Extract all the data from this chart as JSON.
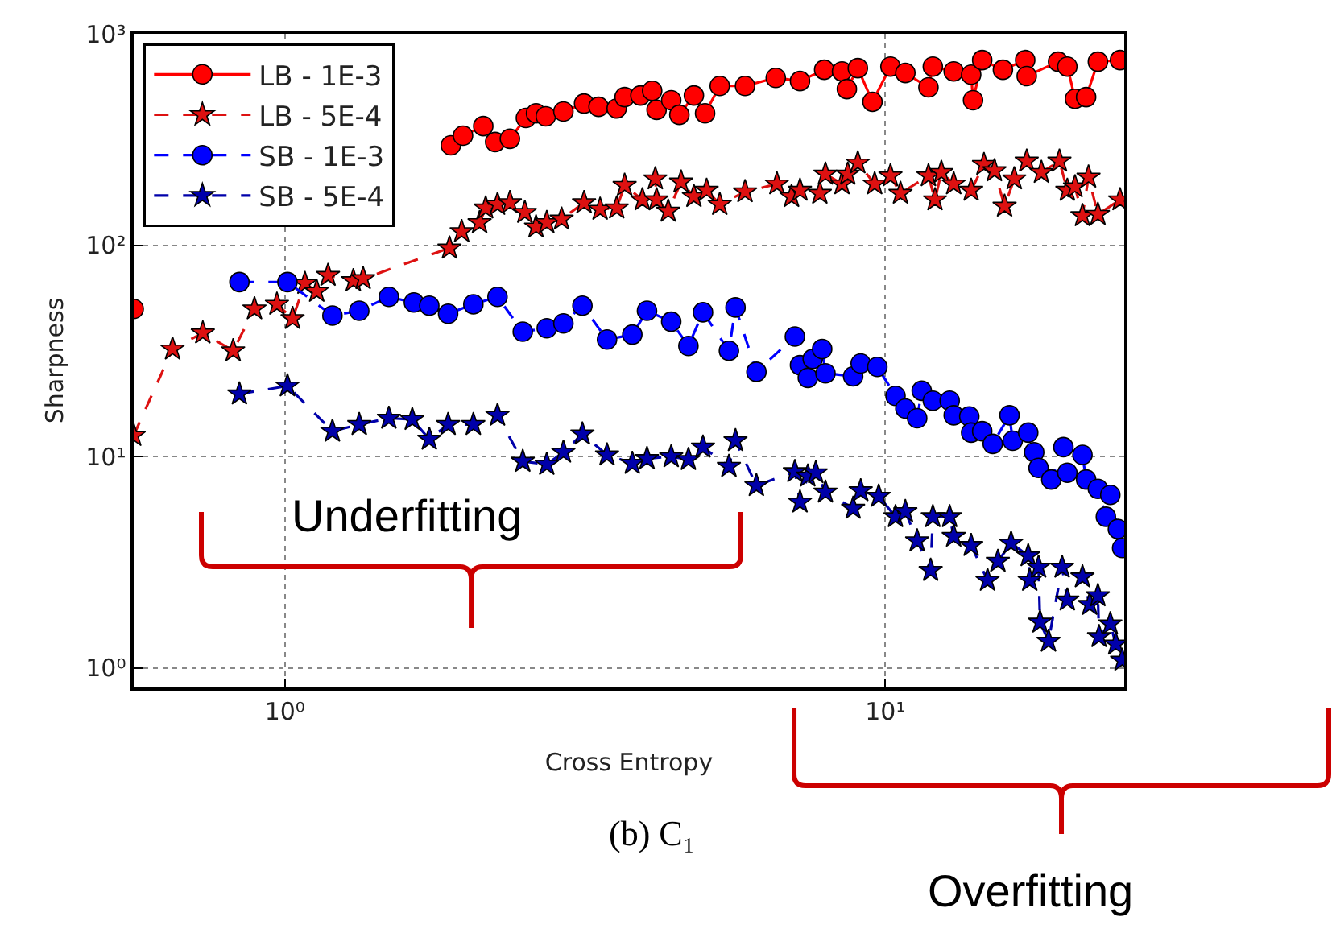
{
  "chart_data": {
    "type": "line",
    "xlabel": "Cross Entropy",
    "ylabel": "Sharpness",
    "annotations": [
      "Underfitting",
      "Overfitting",
      "(b) C₁"
    ],
    "log": "xy",
    "grid": true,
    "legend": "top left",
    "xlim": [
      0.56,
      25
    ],
    "ylim": [
      0.81,
      1000
    ],
    "xticks": [
      {
        "value": 1,
        "label": "10⁰"
      },
      {
        "value": 10,
        "label": "10¹"
      }
    ],
    "yticks": [
      {
        "value": 1,
        "label": "10⁰"
      },
      {
        "value": 10,
        "label": "10¹"
      },
      {
        "value": 100,
        "label": "10²"
      },
      {
        "value": 1000,
        "label": "10³"
      }
    ],
    "series": [
      {
        "name": "LB - 1E-3",
        "color": "#ff0000",
        "marker": "circle",
        "line_style": "solid",
        "x": [
          0.56,
          1.2,
          1.89,
          1.98,
          2.14,
          2.24,
          2.37,
          2.52,
          2.62,
          2.72,
          2.91,
          3.15,
          3.33,
          3.57,
          3.68,
          3.91,
          4.09,
          4.16,
          4.4,
          4.54,
          4.8,
          5.01,
          5.3,
          5.84,
          6.57,
          7.21,
          7.91,
          8.47,
          8.63,
          9.0,
          9.52,
          10.2,
          10.8,
          11.8,
          12.0,
          13.0,
          13.9,
          14.0,
          14.5,
          15.7,
          17.1,
          17.2,
          19.4,
          20.1,
          20.7,
          21.6,
          22.6,
          24.6
        ],
        "values": [
          50,
          null,
          297,
          330,
          366,
          308,
          319,
          400,
          421,
          407,
          429,
          468,
          452,
          444,
          502,
          511,
          538,
          437,
          485,
          414,
          511,
          421,
          567,
          567,
          619,
          598,
          676,
          664,
          548,
          688,
          477,
          700,
          653,
          558,
          700,
          664,
          641,
          485,
          751,
          676,
          751,
          631,
          738,
          700,
          493,
          502,
          738,
          751
        ]
      },
      {
        "name": "LB - 5E-4",
        "color": "#dd1111",
        "marker": "star",
        "line_style": "dashed",
        "x": [
          0.56,
          0.65,
          0.73,
          0.82,
          0.89,
          0.97,
          1.03,
          1.08,
          1.13,
          1.18,
          1.3,
          1.35,
          1.88,
          1.97,
          2.11,
          2.16,
          2.26,
          2.37,
          2.51,
          2.62,
          2.73,
          2.89,
          3.15,
          3.35,
          3.57,
          3.68,
          3.94,
          4.14,
          4.16,
          4.35,
          4.57,
          4.8,
          5.04,
          5.3,
          5.84,
          6.6,
          6.98,
          7.21,
          7.78,
          7.95,
          8.47,
          8.66,
          9.0,
          9.6,
          10.2,
          10.6,
          11.8,
          12.1,
          12.4,
          13.0,
          13.9,
          14.6,
          15.2,
          15.8,
          16.4,
          17.2,
          18.2,
          19.5,
          20.1,
          20.7,
          21.3,
          21.8,
          22.6,
          24.6
        ],
        "values": [
          12.6,
          32.3,
          38.5,
          31.7,
          50,
          52.6,
          45,
          66,
          60.5,
          72,
          68,
          69.5,
          97,
          116,
          128,
          150,
          156,
          159,
          143,
          122,
          128,
          133,
          159,
          148,
          150,
          192,
          164,
          206,
          164,
          145,
          199,
          170,
          182,
          156,
          179,
          195,
          170,
          182,
          176,
          217,
          195,
          217,
          245,
          195,
          213,
          176,
          213,
          164,
          221,
          195,
          182,
          241,
          225,
          153,
          206,
          250,
          221,
          250,
          182,
          189,
          138,
          210,
          140,
          164
        ]
      },
      {
        "name": "SB - 1E-3",
        "color": "#0000ff",
        "marker": "circle",
        "line_style": "dashed",
        "x": [
          0.84,
          1.01,
          1.2,
          1.33,
          1.49,
          1.64,
          1.74,
          1.87,
          2.06,
          2.26,
          2.49,
          2.73,
          2.91,
          3.13,
          3.44,
          3.79,
          4.01,
          4.4,
          4.7,
          4.97,
          5.49,
          5.63,
          6.1,
          7.07,
          7.21,
          7.43,
          7.57,
          7.85,
          7.95,
          8.84,
          9.1,
          9.7,
          10.4,
          10.8,
          11.3,
          11.5,
          12.0,
          12.8,
          13.0,
          13.8,
          13.9,
          14.5,
          15.1,
          16.1,
          16.3,
          17.3,
          17.7,
          18.0,
          18.9,
          19.8,
          20.1,
          21.3,
          21.6,
          22.6,
          23.3,
          23.7,
          24.4,
          24.8
        ],
        "values": [
          67,
          67,
          46.5,
          49,
          57,
          53.6,
          51.8,
          47.4,
          52.6,
          57,
          39,
          40.5,
          42.7,
          51.8,
          35.8,
          37.8,
          49,
          43.5,
          33.4,
          48.2,
          31.7,
          50.8,
          25.2,
          37,
          27.1,
          23.6,
          29,
          32.3,
          24.8,
          24,
          27.6,
          26.6,
          19.4,
          16.9,
          15.2,
          20.5,
          18.4,
          18.4,
          15.7,
          15.5,
          13,
          13.2,
          11.5,
          15.7,
          11.9,
          13,
          10.5,
          8.85,
          7.8,
          11.1,
          8.4,
          10.2,
          7.8,
          7.05,
          5.2,
          6.6,
          4.55,
          3.7
        ]
      },
      {
        "name": "SB - 5E-4",
        "color": "#0000aa",
        "marker": "star",
        "line_style": "dashed",
        "x": [
          0.84,
          1.01,
          1.2,
          1.33,
          1.49,
          1.63,
          1.74,
          1.87,
          2.06,
          2.26,
          2.49,
          2.73,
          2.91,
          3.13,
          3.44,
          3.79,
          4.01,
          4.4,
          4.7,
          4.97,
          5.49,
          5.63,
          6.1,
          7.07,
          7.21,
          7.43,
          7.66,
          7.95,
          8.84,
          9.1,
          9.75,
          10.4,
          10.8,
          11.3,
          11.9,
          12.0,
          12.8,
          13.0,
          13.9,
          14.8,
          15.4,
          16.2,
          17.3,
          17.4,
          18.0,
          18.1,
          18.7,
          19.7,
          20.1,
          21.3,
          21.9,
          22.6,
          22.7,
          23.7,
          24.2,
          24.8
        ],
        "values": [
          19.8,
          21.6,
          13.2,
          14.2,
          15.2,
          15,
          12.1,
          14.2,
          14.2,
          15.7,
          9.5,
          9.2,
          10.5,
          12.8,
          10.2,
          9.3,
          9.8,
          10,
          9.7,
          11.1,
          9.0,
          11.9,
          7.3,
          8.5,
          6.1,
          8.1,
          8.4,
          6.8,
          5.7,
          6.9,
          6.5,
          5.2,
          5.5,
          4.0,
          2.9,
          5.2,
          5.2,
          4.2,
          3.8,
          2.6,
          3.2,
          3.9,
          3.4,
          2.6,
          3.0,
          1.65,
          1.34,
          3.0,
          2.1,
          2.7,
          2.0,
          2.2,
          1.41,
          1.62,
          1.3,
          1.09
        ]
      }
    ]
  }
}
